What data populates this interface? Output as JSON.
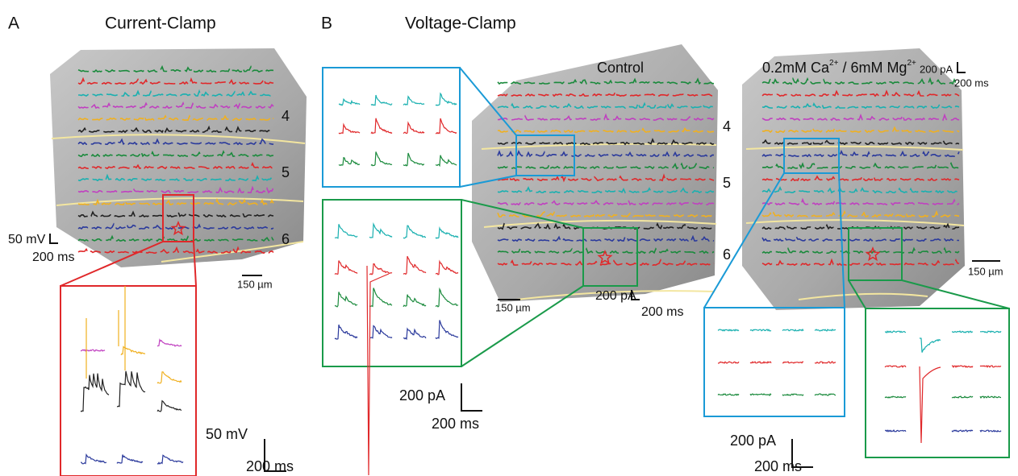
{
  "panel_a": {
    "letter": "A",
    "title": "Current-Clamp",
    "layers": [
      "4",
      "5",
      "6"
    ],
    "map_scale": {
      "voltage": "50 mV",
      "time": "200 ms"
    },
    "distance_scale": "150 µm",
    "inset_scale": {
      "voltage": "50 mV",
      "time": "200 ms"
    }
  },
  "panel_b": {
    "letter": "B",
    "title": "Voltage-Clamp",
    "control": {
      "label": "Control",
      "layers": [
        "4",
        "5",
        "6"
      ],
      "map_scale": {
        "current": "200 pA",
        "time": "200 ms"
      },
      "distance_scale": "150 µm",
      "inset_scale": {
        "current": "200 pA",
        "time": "200 ms"
      }
    },
    "low_calcium": {
      "label_parts": [
        "0.2mM Ca",
        "2+",
        " / 6mM Mg",
        "2+"
      ],
      "map_scale": {
        "current": "200 pA",
        "time": "200 ms"
      },
      "distance_scale": "150 µm",
      "inset_scale": {
        "current": "200 pA",
        "time": "200 ms"
      }
    }
  }
}
